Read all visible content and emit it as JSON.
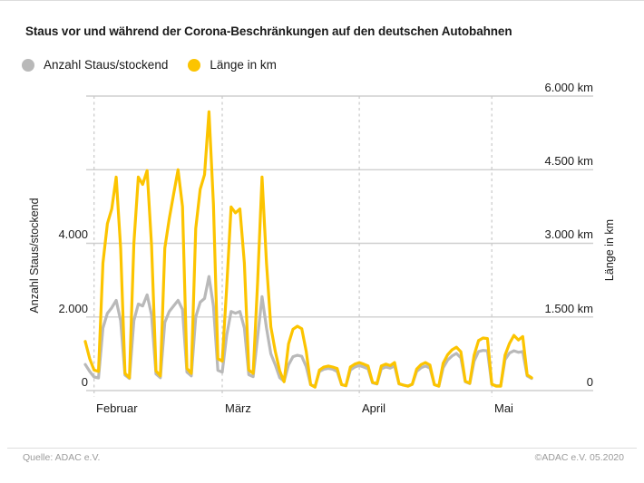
{
  "title": "Staus vor und während der Corona-Beschränkungen auf den deutschen Autobahnen",
  "legend": {
    "items": [
      {
        "label": "Anzahl Staus/stockend",
        "color": "#b9b9b9"
      },
      {
        "label": "Länge in km",
        "color": "#fcc400"
      }
    ]
  },
  "footer": {
    "source": "Quelle: ADAC e.V.",
    "copyright": "©ADAC e.V.  05.2020"
  },
  "colors": {
    "anzahl_line": "#b9b9b9",
    "laenge_line": "#fcc400",
    "grid": "#cfcfcf",
    "month_grid_dashed": "#c9c9c9"
  },
  "chart_data": {
    "type": "line",
    "title": "Staus vor und während der Corona-Beschränkungen auf den deutschen Autobahnen",
    "frequency": "daily",
    "x_start": "2020-01-30",
    "x_end": "2020-05-10",
    "month_ticks": [
      "Februar",
      "März",
      "April",
      "Mai"
    ],
    "month_tick_day_index": [
      2,
      31,
      62,
      92
    ],
    "grid": "horizontal solid lines, dashed vertical lines at month starts",
    "legend_position": "top-left",
    "left_axis": {
      "label": "Anzahl Staus/stockend",
      "range": [
        0,
        8000
      ],
      "ticks_display": [
        "4.000",
        "2.000",
        "0"
      ],
      "tick_values": [
        4000,
        2000,
        0
      ]
    },
    "right_axis": {
      "label": "Länge in km",
      "range": [
        0,
        6000
      ],
      "ticks_display": [
        "6.000 km",
        "4.500 km",
        "3.000 km",
        "1.500 km",
        "0"
      ],
      "tick_values": [
        6000,
        4500,
        3000,
        1500,
        0
      ]
    },
    "series": [
      {
        "name": "Anzahl Staus/stockend",
        "axis": "left",
        "color": "#b9b9b9",
        "values": [
          710,
          520,
          370,
          345,
          1700,
          2100,
          2250,
          2450,
          1900,
          420,
          330,
          1900,
          2350,
          2300,
          2600,
          2050,
          450,
          350,
          1850,
          2150,
          2300,
          2450,
          2200,
          500,
          400,
          2000,
          2400,
          2500,
          3100,
          2300,
          550,
          500,
          1500,
          2150,
          2100,
          2150,
          1700,
          430,
          380,
          1450,
          2550,
          1700,
          1000,
          700,
          350,
          250,
          700,
          920,
          960,
          930,
          650,
          160,
          110,
          520,
          580,
          600,
          580,
          520,
          160,
          130,
          560,
          640,
          680,
          640,
          590,
          210,
          180,
          590,
          640,
          610,
          670,
          180,
          150,
          120,
          170,
          520,
          620,
          670,
          610,
          160,
          120,
          620,
          830,
          940,
          1010,
          890,
          240,
          190,
          800,
          1060,
          1090,
          1080,
          170,
          130,
          130,
          840,
          1020,
          1080,
          1040,
          1060,
          400,
          330
        ]
      },
      {
        "name": "Länge in km",
        "axis": "right",
        "color": "#fcc400",
        "values": [
          1000,
          650,
          420,
          390,
          2600,
          3400,
          3700,
          4350,
          2900,
          350,
          260,
          3000,
          4350,
          4200,
          4480,
          2950,
          400,
          300,
          2900,
          3500,
          4000,
          4500,
          3750,
          450,
          350,
          3300,
          4100,
          4400,
          5680,
          3800,
          650,
          600,
          2100,
          3740,
          3620,
          3700,
          2600,
          420,
          350,
          2200,
          4350,
          2600,
          1300,
          800,
          400,
          180,
          950,
          1250,
          1310,
          1260,
          800,
          120,
          70,
          420,
          480,
          500,
          480,
          450,
          120,
          100,
          480,
          540,
          570,
          540,
          500,
          170,
          140,
          500,
          540,
          510,
          570,
          140,
          110,
          90,
          130,
          440,
          530,
          570,
          520,
          120,
          90,
          560,
          730,
          830,
          885,
          790,
          190,
          150,
          720,
          1020,
          1070,
          1060,
          130,
          90,
          90,
          720,
          960,
          1125,
          1030,
          1100,
          320,
          260
        ]
      }
    ]
  }
}
